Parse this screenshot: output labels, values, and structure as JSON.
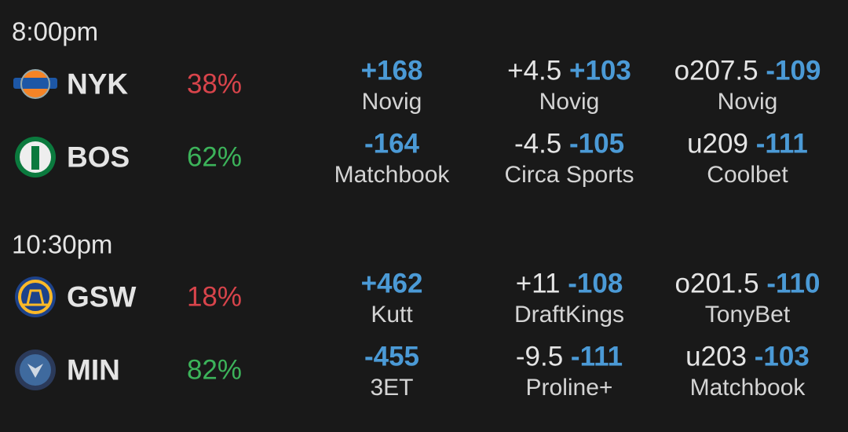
{
  "games": [
    {
      "time": "8:00pm",
      "teams": [
        {
          "abbr": "NYK",
          "pct": "38%",
          "moneyline": {
            "odds": "+168",
            "book": "Novig"
          },
          "spread": {
            "line": "+4.5",
            "odds": "+103",
            "book": "Novig"
          },
          "total": {
            "line": "o207.5",
            "odds": "-109",
            "book": "Novig"
          }
        },
        {
          "abbr": "BOS",
          "pct": "62%",
          "moneyline": {
            "odds": "-164",
            "book": "Matchbook"
          },
          "spread": {
            "line": "-4.5",
            "odds": "-105",
            "book": "Circa Sports"
          },
          "total": {
            "line": "u209",
            "odds": "-111",
            "book": "Coolbet"
          }
        }
      ]
    },
    {
      "time": "10:30pm",
      "teams": [
        {
          "abbr": "GSW",
          "pct": "18%",
          "moneyline": {
            "odds": "+462",
            "book": "Kutt"
          },
          "spread": {
            "line": "+11",
            "odds": "-108",
            "book": "DraftKings"
          },
          "total": {
            "line": "o201.5",
            "odds": "-110",
            "book": "TonyBet"
          }
        },
        {
          "abbr": "MIN",
          "pct": "82%",
          "moneyline": {
            "odds": "-455",
            "book": "3ET"
          },
          "spread": {
            "line": "-9.5",
            "odds": "-111",
            "book": "Proline+"
          },
          "total": {
            "line": "u203",
            "odds": "-103",
            "book": "Matchbook"
          }
        }
      ]
    }
  ]
}
